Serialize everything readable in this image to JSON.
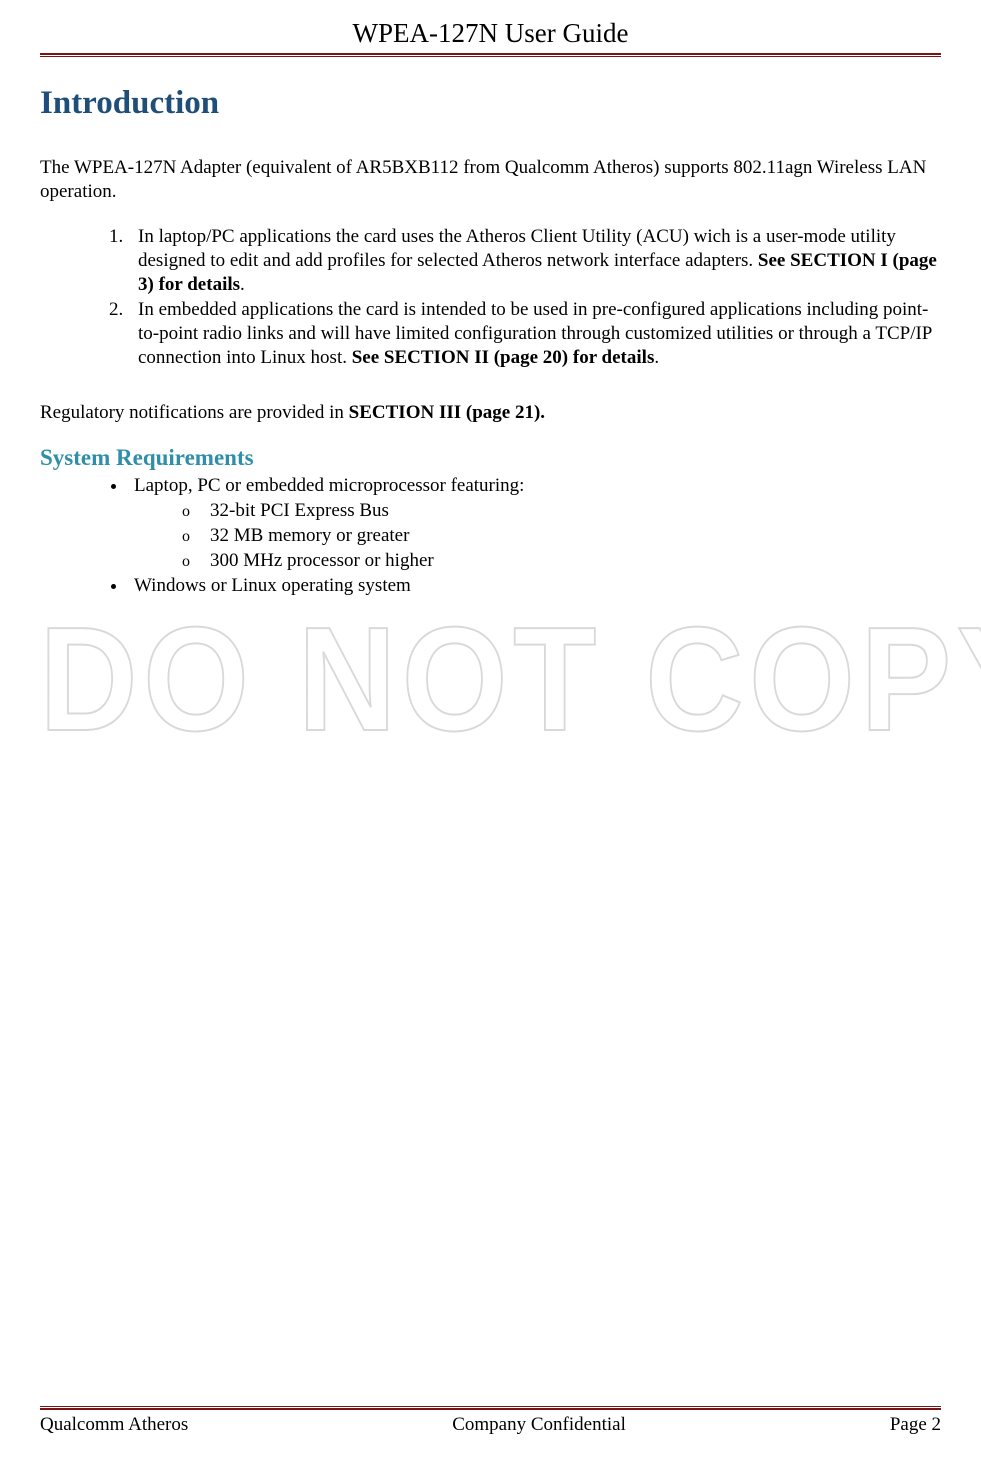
{
  "header": {
    "title": "WPEA-127N User Guide"
  },
  "intro": {
    "heading": "Introduction",
    "para1": "The WPEA-127N Adapter (equivalent of AR5BXB112 from Qualcomm Atheros) supports 802.11agn Wireless LAN operation.",
    "item1_a": "In laptop/PC applications the card uses the Atheros Client Utility (ACU) wich is a user-mode utility designed to edit and add profiles for selected Atheros network interface adapters. ",
    "item1_b": "See SECTION I (page 3) for details",
    "item1_c": ".",
    "item2_a": "In embedded applications the card is intended to be used in pre-configured applications including point-to-point radio links and will have limited configuration through customized utilities or through a TCP/IP connection into Linux host. ",
    "item2_b": "See SECTION II (page 20) for details",
    "item2_c": ".",
    "para2_a": "Regulatory notifications are provided in ",
    "para2_b": "SECTION III (page 21)."
  },
  "sysreq": {
    "heading": "System Requirements",
    "b1": "Laptop, PC or embedded microprocessor featuring:",
    "s1": "32-bit PCI Express Bus",
    "s2": "32 MB memory or greater",
    "s3": "300 MHz processor or higher",
    "b2": "Windows  or Linux operating system"
  },
  "watermark": "DO NOT COPY",
  "footer": {
    "left": "Qualcomm Atheros",
    "center": "Company Confidential",
    "right": "Page 2"
  },
  "colors": {
    "rule": "#7a1414",
    "h1": "#1f4e79",
    "h2": "#2f8ea8",
    "watermark_stroke": "#d9d9d9",
    "text": "#000000",
    "bg": "#ffffff"
  }
}
